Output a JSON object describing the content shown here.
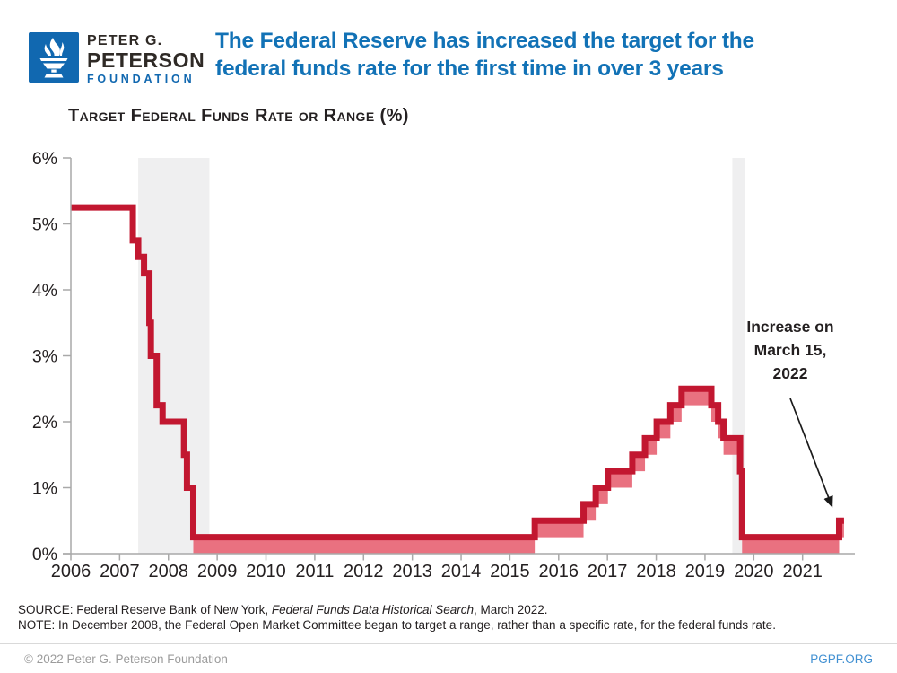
{
  "header": {
    "logo": {
      "line1": "PETER G.",
      "line2": "PETERSON",
      "line3": "FOUNDATION",
      "square_color": "#1168b0"
    },
    "title": "The Federal Reserve has increased the target for the federal funds rate for the first time in over 3 years",
    "title_color": "#1272b6"
  },
  "chart_data": {
    "type": "area",
    "title": "Target Federal Funds Rate or Range (%)",
    "x_domain": [
      2006.45,
      2022.3
    ],
    "y_domain": [
      0,
      6
    ],
    "grid": false,
    "y_ticks": [
      {
        "v": 0,
        "label": "0%"
      },
      {
        "v": 1,
        "label": "1%"
      },
      {
        "v": 2,
        "label": "2%"
      },
      {
        "v": 3,
        "label": "3%"
      },
      {
        "v": 4,
        "label": "4%"
      },
      {
        "v": 5,
        "label": "5%"
      },
      {
        "v": 6,
        "label": "6%"
      }
    ],
    "x_tick_years": [
      2006,
      2007,
      2008,
      2009,
      2010,
      2011,
      2012,
      2013,
      2014,
      2015,
      2016,
      2017,
      2018,
      2019,
      2020,
      2021
    ],
    "recessions": [
      {
        "start": 2007.83,
        "end": 2009.29
      },
      {
        "start": 2020.01,
        "end": 2020.27
      }
    ],
    "series_name": "Target federal funds rate or range (upper and lower bound)",
    "steps": [
      {
        "t": 2006.45,
        "upper": 5.25,
        "lower": 5.25
      },
      {
        "t": 2007.72,
        "upper": 4.75,
        "lower": 4.75
      },
      {
        "t": 2007.83,
        "upper": 4.5,
        "lower": 4.5
      },
      {
        "t": 2007.95,
        "upper": 4.25,
        "lower": 4.25
      },
      {
        "t": 2008.06,
        "upper": 3.5,
        "lower": 3.5
      },
      {
        "t": 2008.09,
        "upper": 3.0,
        "lower": 3.0
      },
      {
        "t": 2008.21,
        "upper": 2.25,
        "lower": 2.25
      },
      {
        "t": 2008.33,
        "upper": 2.0,
        "lower": 2.0
      },
      {
        "t": 2008.77,
        "upper": 1.5,
        "lower": 1.5
      },
      {
        "t": 2008.83,
        "upper": 1.0,
        "lower": 1.0
      },
      {
        "t": 2008.96,
        "upper": 0.25,
        "lower": 0.0
      },
      {
        "t": 2015.96,
        "upper": 0.5,
        "lower": 0.25
      },
      {
        "t": 2016.96,
        "upper": 0.75,
        "lower": 0.5
      },
      {
        "t": 2017.21,
        "upper": 1.0,
        "lower": 0.75
      },
      {
        "t": 2017.46,
        "upper": 1.25,
        "lower": 1.0
      },
      {
        "t": 2017.96,
        "upper": 1.5,
        "lower": 1.25
      },
      {
        "t": 2018.22,
        "upper": 1.75,
        "lower": 1.5
      },
      {
        "t": 2018.46,
        "upper": 2.0,
        "lower": 1.75
      },
      {
        "t": 2018.74,
        "upper": 2.25,
        "lower": 2.0
      },
      {
        "t": 2018.97,
        "upper": 2.5,
        "lower": 2.25
      },
      {
        "t": 2019.58,
        "upper": 2.25,
        "lower": 2.0
      },
      {
        "t": 2019.72,
        "upper": 2.0,
        "lower": 1.75
      },
      {
        "t": 2019.83,
        "upper": 1.75,
        "lower": 1.5
      },
      {
        "t": 2020.17,
        "upper": 1.25,
        "lower": 1.0
      },
      {
        "t": 2020.21,
        "upper": 0.25,
        "lower": 0.0
      },
      {
        "t": 2022.2,
        "upper": 0.5,
        "lower": 0.25
      }
    ],
    "annotation": {
      "lines": [
        "Increase on",
        "March 15,",
        "2022"
      ],
      "points_to": {
        "t": 2022.2,
        "value": 0.5
      }
    },
    "colors": {
      "line": "#c21730",
      "band": "#e97180",
      "recession": "#efeff0",
      "axis": "#a9a9a9",
      "text": "#231f20"
    }
  },
  "footnotes": {
    "source_prefix": "SOURCE: Federal Reserve Bank of New York, ",
    "source_italic": "Federal Funds Data Historical Search",
    "source_suffix": ", March 2022.",
    "note": "NOTE: In December 2008, the Federal Open Market Committee began to target a range, rather than a specific rate, for the federal funds rate."
  },
  "footer": {
    "copyright": "© 2022 Peter G. Peterson Foundation",
    "site": "PGPF.ORG"
  }
}
